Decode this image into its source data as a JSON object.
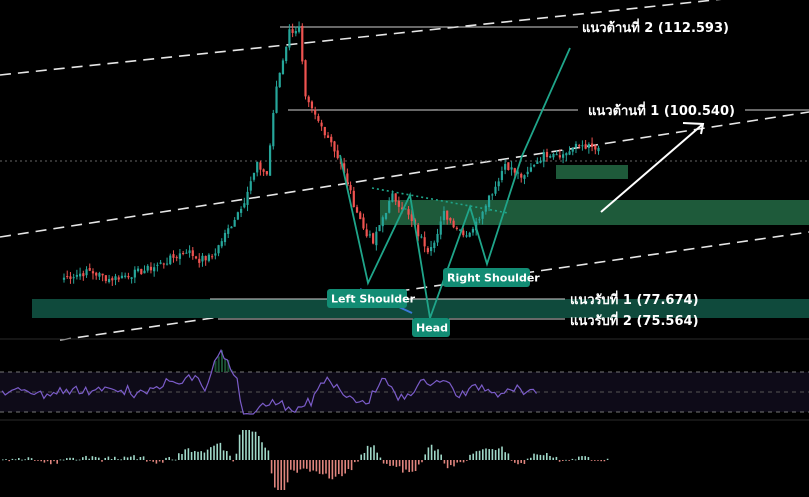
{
  "chart_data": {
    "type": "candlestick",
    "title": "",
    "colors": {
      "up": "#26a69a",
      "down": "#ef5350",
      "zone": "#1e5a3a",
      "zone_teal": "#0f4a3c",
      "pattern": "#1fa58a",
      "label_bg": "#128c74",
      "rsi": "#7b5cc9",
      "arrow": "#ffffff"
    },
    "resistance_levels": [
      {
        "label": "แนวต้านที่ 2 (112.593)",
        "value": 112.593
      },
      {
        "label": "แนวต้านที่ 1 (100.540)",
        "value": 100.54
      }
    ],
    "support_levels": [
      {
        "label": "แนวรับที่ 1 (77.674)",
        "value": 77.674
      },
      {
        "label": "แนวรับที่ 2 (75.564)",
        "value": 75.564
      }
    ],
    "pattern_labels": {
      "left_shoulder": "Left Shoulder",
      "head": "Head",
      "right_shoulder": "Right Shoulder"
    },
    "price_path": [
      [
        0,
        76.2
      ],
      [
        8,
        77.1
      ],
      [
        14,
        76.0
      ],
      [
        20,
        76.6
      ],
      [
        26,
        77.4
      ],
      [
        32,
        78.6
      ],
      [
        38,
        80.2
      ],
      [
        42,
        78.8
      ],
      [
        46,
        79.2
      ],
      [
        52,
        84.0
      ],
      [
        56,
        87.5
      ],
      [
        60,
        92.5
      ],
      [
        63,
        91.2
      ],
      [
        66,
        104.0
      ],
      [
        70,
        112.0
      ],
      [
        73,
        112.4
      ],
      [
        75,
        102.0
      ],
      [
        79,
        98.8
      ],
      [
        83,
        96.0
      ],
      [
        86,
        92.5
      ],
      [
        90,
        87.0
      ],
      [
        93,
        83.4
      ],
      [
        96,
        81.2
      ],
      [
        99,
        85.0
      ],
      [
        102,
        88.0
      ],
      [
        106,
        86.0
      ],
      [
        110,
        82.5
      ],
      [
        113,
        80.4
      ],
      [
        116,
        82.5
      ],
      [
        118,
        85.5
      ],
      [
        122,
        83.5
      ],
      [
        125,
        82.5
      ],
      [
        128,
        84.0
      ],
      [
        131,
        87.2
      ],
      [
        134,
        89.5
      ],
      [
        137,
        92.8
      ],
      [
        140,
        91.5
      ],
      [
        143,
        90.6
      ],
      [
        146,
        92.8
      ],
      [
        149,
        94.0
      ],
      [
        152,
        94.5
      ],
      [
        155,
        94.0
      ],
      [
        158,
        95.0
      ],
      [
        161,
        95.5
      ],
      [
        164,
        95.0
      ],
      [
        166,
        94.6
      ]
    ]
  }
}
